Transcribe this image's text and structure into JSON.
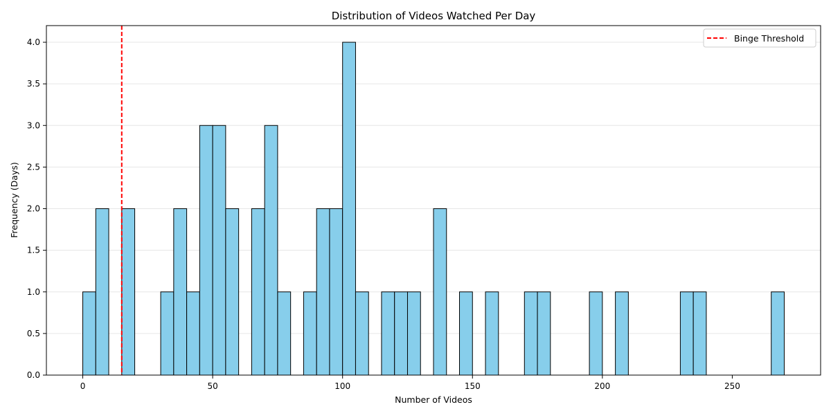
{
  "chart_data": {
    "type": "bar",
    "title": "Distribution of Videos Watched Per Day",
    "xlabel": "Number of Videos",
    "ylabel": "Frequency (Days)",
    "xlim": [
      -14,
      284
    ],
    "ylim": [
      0,
      4.2
    ],
    "x_ticks": [
      0,
      50,
      100,
      150,
      200,
      250
    ],
    "y_ticks": [
      0.0,
      0.5,
      1.0,
      1.5,
      2.0,
      2.5,
      3.0,
      3.5,
      4.0
    ],
    "bin_width": 5,
    "bins": [
      {
        "start": 0,
        "end": 5,
        "count": 1
      },
      {
        "start": 5,
        "end": 10,
        "count": 2
      },
      {
        "start": 15,
        "end": 20,
        "count": 2
      },
      {
        "start": 30,
        "end": 35,
        "count": 1
      },
      {
        "start": 35,
        "end": 40,
        "count": 2
      },
      {
        "start": 40,
        "end": 45,
        "count": 1
      },
      {
        "start": 45,
        "end": 50,
        "count": 3
      },
      {
        "start": 50,
        "end": 55,
        "count": 3
      },
      {
        "start": 55,
        "end": 60,
        "count": 2
      },
      {
        "start": 65,
        "end": 70,
        "count": 2
      },
      {
        "start": 70,
        "end": 75,
        "count": 3
      },
      {
        "start": 75,
        "end": 80,
        "count": 1
      },
      {
        "start": 85,
        "end": 90,
        "count": 1
      },
      {
        "start": 90,
        "end": 95,
        "count": 2
      },
      {
        "start": 95,
        "end": 100,
        "count": 2
      },
      {
        "start": 100,
        "end": 105,
        "count": 4
      },
      {
        "start": 105,
        "end": 110,
        "count": 1
      },
      {
        "start": 115,
        "end": 120,
        "count": 1
      },
      {
        "start": 120,
        "end": 125,
        "count": 1
      },
      {
        "start": 125,
        "end": 130,
        "count": 1
      },
      {
        "start": 135,
        "end": 140,
        "count": 2
      },
      {
        "start": 145,
        "end": 150,
        "count": 1
      },
      {
        "start": 155,
        "end": 160,
        "count": 1
      },
      {
        "start": 170,
        "end": 175,
        "count": 1
      },
      {
        "start": 175,
        "end": 180,
        "count": 1
      },
      {
        "start": 195,
        "end": 200,
        "count": 1
      },
      {
        "start": 205,
        "end": 210,
        "count": 1
      },
      {
        "start": 230,
        "end": 235,
        "count": 1
      },
      {
        "start": 235,
        "end": 240,
        "count": 1
      },
      {
        "start": 265,
        "end": 270,
        "count": 1
      }
    ],
    "bar_color": "#87ceeb",
    "bar_edge_color": "#000000",
    "threshold": {
      "x": 15,
      "label": "Binge Threshold",
      "color": "#ff0000",
      "style": "dashed"
    },
    "legend_position": "top-right",
    "grid": {
      "y": true,
      "x": false
    }
  }
}
